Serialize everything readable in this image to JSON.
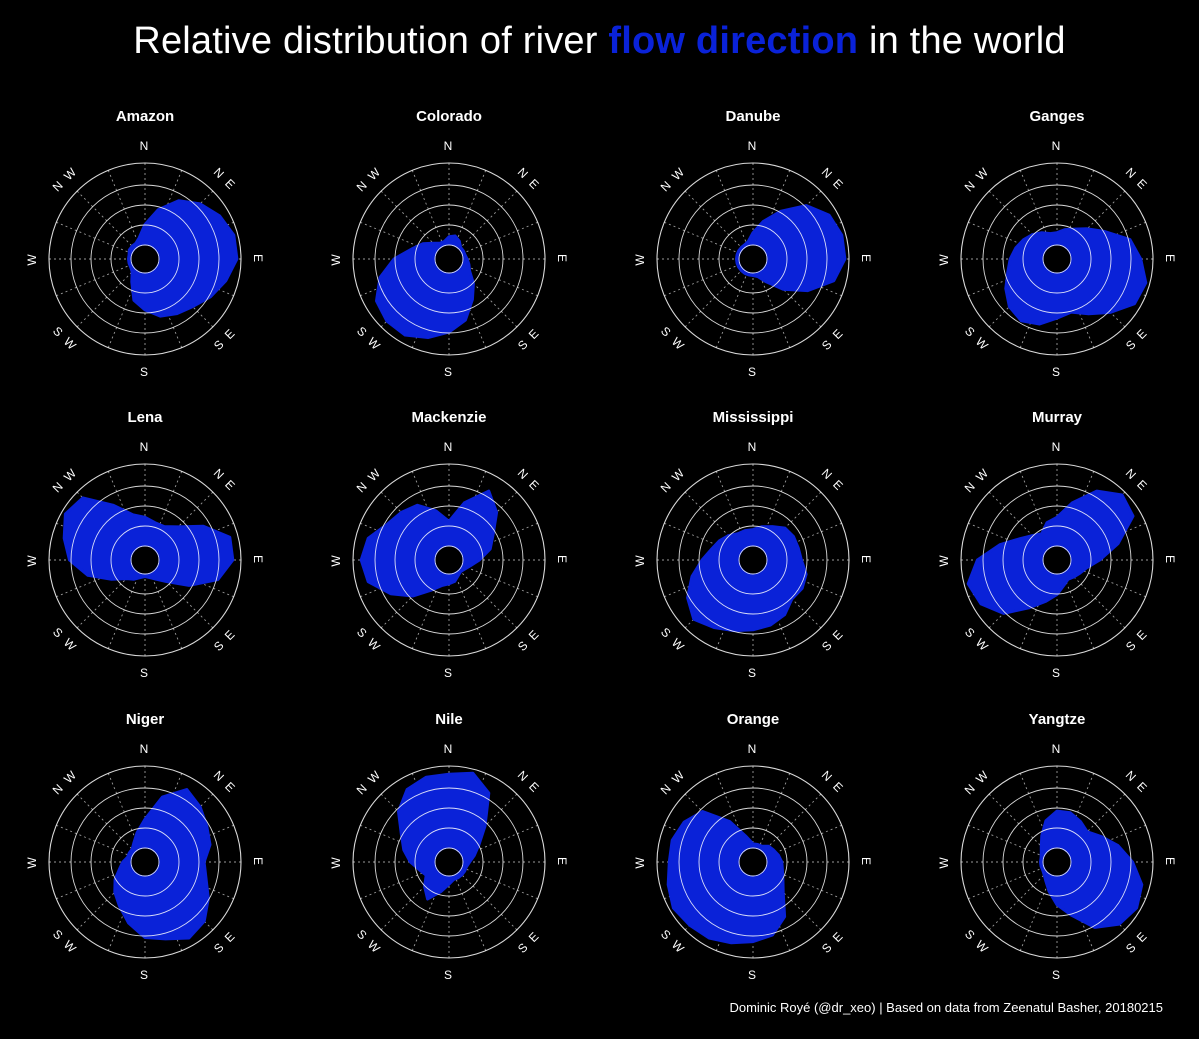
{
  "title": {
    "prefix": "Relative distribution of river",
    "highlight": "flow direction",
    "suffix": "in the world"
  },
  "colors": {
    "fill": "#0a22d8",
    "highlight": "#0a22d8",
    "background": "#000000",
    "axis": "#ffffff"
  },
  "caption": "Dominic Royé (@dr_xeo) | Based on data from Zeenatul Basher, 20180215",
  "chart_data": [
    {
      "type": "area",
      "title": "Amazon",
      "theta_labels": [
        "N",
        "N E",
        "E",
        "S E",
        "S",
        "S W",
        "W",
        "N W"
      ],
      "r": [
        0.25,
        0.45,
        0.65,
        0.78,
        0.88,
        0.95,
        0.95,
        0.85,
        0.75,
        0.65,
        0.6,
        0.55,
        0.45,
        0.35,
        0.15,
        0.05,
        0.03,
        0.03,
        0.03,
        0.03,
        0.05,
        0.05,
        0.05,
        0.1
      ]
    },
    {
      "type": "area",
      "title": "Colorado",
      "theta_labels": [
        "N",
        "N E",
        "E",
        "S E",
        "S",
        "S W",
        "W",
        "N W"
      ],
      "r": [
        0.1,
        0.12,
        0.08,
        0.03,
        0.03,
        0.03,
        0.05,
        0.08,
        0.12,
        0.25,
        0.4,
        0.6,
        0.72,
        0.82,
        0.9,
        0.9,
        0.85,
        0.7,
        0.5,
        0.3,
        0.2,
        0.1,
        0.05,
        0.05
      ]
    },
    {
      "type": "area",
      "title": "Danube",
      "theta_labels": [
        "N",
        "N E",
        "E",
        "S E",
        "S",
        "S W",
        "W",
        "N W"
      ],
      "r": [
        0.15,
        0.3,
        0.5,
        0.75,
        0.9,
        0.95,
        0.95,
        0.85,
        0.6,
        0.35,
        0.15,
        0.05,
        0.03,
        0.03,
        0.03,
        0.03,
        0.03,
        0.03,
        0.03,
        0.03,
        0.03,
        0.03,
        0.03,
        0.05
      ]
    },
    {
      "type": "area",
      "title": "Ganges",
      "theta_labels": [
        "N",
        "N E",
        "E",
        "S E",
        "S",
        "S W",
        "W",
        "N W"
      ],
      "r": [
        0.15,
        0.2,
        0.25,
        0.35,
        0.5,
        0.75,
        0.85,
        0.95,
        0.92,
        0.75,
        0.6,
        0.5,
        0.55,
        0.65,
        0.7,
        0.65,
        0.55,
        0.45,
        0.4,
        0.35,
        0.3,
        0.25,
        0.2,
        0.15
      ]
    },
    {
      "type": "area",
      "title": "Lena",
      "theta_labels": [
        "N",
        "N E",
        "E",
        "S E",
        "S",
        "S W",
        "W",
        "N W"
      ],
      "r": [
        0.35,
        0.3,
        0.3,
        0.4,
        0.65,
        0.9,
        0.9,
        0.75,
        0.45,
        0.2,
        0.1,
        0.05,
        0.03,
        0.05,
        0.1,
        0.15,
        0.3,
        0.55,
        0.75,
        0.85,
        0.95,
        0.9,
        0.6,
        0.4
      ]
    },
    {
      "type": "area",
      "title": "Mackenzie",
      "theta_labels": [
        "N",
        "N E",
        "E",
        "S E",
        "S",
        "S W",
        "W",
        "N W"
      ],
      "r": [
        0.3,
        0.55,
        0.8,
        0.65,
        0.45,
        0.35,
        0.2,
        0.1,
        0.05,
        0.03,
        0.05,
        0.1,
        0.12,
        0.15,
        0.25,
        0.45,
        0.65,
        0.85,
        0.9,
        0.85,
        0.7,
        0.65,
        0.6,
        0.45
      ]
    },
    {
      "type": "area",
      "title": "Mississippi",
      "theta_labels": [
        "N",
        "N E",
        "E",
        "S E",
        "S",
        "S W",
        "W",
        "N W"
      ],
      "r": [
        0.2,
        0.25,
        0.3,
        0.38,
        0.4,
        0.4,
        0.42,
        0.5,
        0.52,
        0.5,
        0.6,
        0.65,
        0.68,
        0.72,
        0.78,
        0.85,
        0.75,
        0.6,
        0.45,
        0.35,
        0.3,
        0.25,
        0.2,
        0.2
      ]
    },
    {
      "type": "area",
      "title": "Murray",
      "theta_labels": [
        "N",
        "N E",
        "E",
        "S E",
        "S",
        "S W",
        "W",
        "N W"
      ],
      "r": [
        0.35,
        0.55,
        0.8,
        0.95,
        0.9,
        0.6,
        0.35,
        0.2,
        0.15,
        0.12,
        0.1,
        0.15,
        0.25,
        0.35,
        0.5,
        0.75,
        0.9,
        0.95,
        0.8,
        0.55,
        0.35,
        0.25,
        0.2,
        0.3
      ]
    },
    {
      "type": "area",
      "title": "Niger",
      "theta_labels": [
        "N",
        "N E",
        "E",
        "S E",
        "S",
        "S W",
        "W",
        "N W"
      ],
      "r": [
        0.35,
        0.65,
        0.85,
        0.78,
        0.7,
        0.65,
        0.55,
        0.6,
        0.72,
        0.85,
        0.9,
        0.8,
        0.75,
        0.6,
        0.45,
        0.35,
        0.25,
        0.15,
        0.1,
        0.05,
        0.05,
        0.05,
        0.1,
        0.2
      ]
    },
    {
      "type": "area",
      "title": "Nile",
      "theta_labels": [
        "N",
        "N E",
        "E",
        "S E",
        "S",
        "S W",
        "W",
        "N W"
      ],
      "r": [
        0.9,
        0.95,
        0.8,
        0.45,
        0.25,
        0.15,
        0.08,
        0.05,
        0.05,
        0.05,
        0.05,
        0.05,
        0.1,
        0.2,
        0.35,
        0.25,
        0.15,
        0.2,
        0.3,
        0.4,
        0.5,
        0.7,
        0.85,
        0.9
      ]
    },
    {
      "type": "area",
      "title": "Orange",
      "theta_labels": [
        "N",
        "N E",
        "E",
        "S E",
        "S",
        "S W",
        "W",
        "N W"
      ],
      "r": [
        0.05,
        0.05,
        0.05,
        0.1,
        0.12,
        0.15,
        0.18,
        0.2,
        0.25,
        0.35,
        0.6,
        0.75,
        0.8,
        0.85,
        0.9,
        0.92,
        0.95,
        0.9,
        0.85,
        0.85,
        0.8,
        0.7,
        0.4,
        0.15
      ]
    },
    {
      "type": "area",
      "title": "Yangtze",
      "theta_labels": [
        "N",
        "N E",
        "E",
        "S E",
        "S",
        "S W",
        "W",
        "N W"
      ],
      "r": [
        0.45,
        0.45,
        0.4,
        0.35,
        0.45,
        0.6,
        0.75,
        0.9,
        0.95,
        0.9,
        0.75,
        0.5,
        0.35,
        0.2,
        0.1,
        0.05,
        0.03,
        0.03,
        0.03,
        0.03,
        0.05,
        0.1,
        0.2,
        0.35
      ]
    }
  ]
}
